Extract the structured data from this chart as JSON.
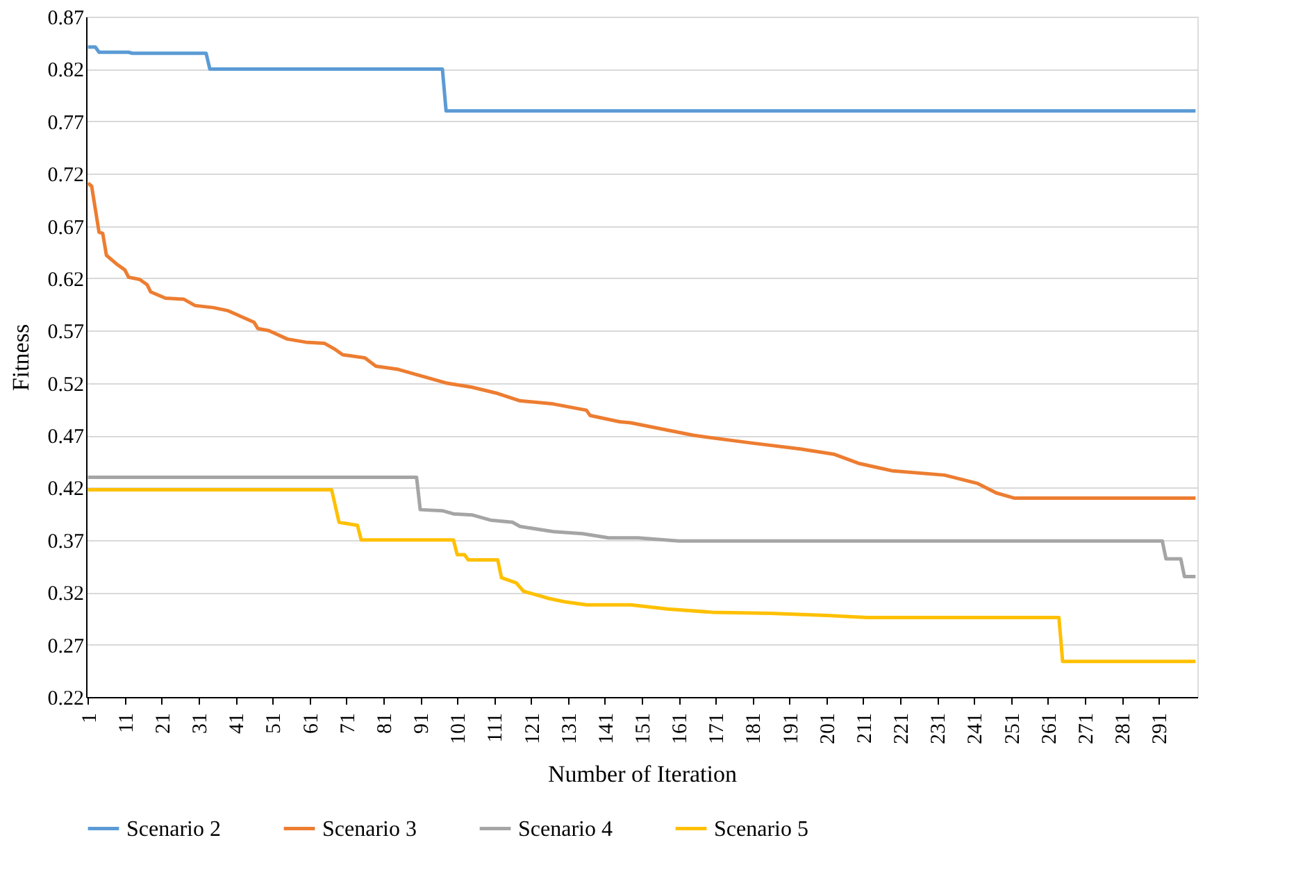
{
  "chart_data": {
    "type": "line",
    "xlabel": "Number of Iteration",
    "ylabel": "Fitness",
    "xlim": [
      0.5,
      301.5
    ],
    "xticks": [
      1,
      11,
      21,
      31,
      41,
      51,
      61,
      71,
      81,
      91,
      101,
      111,
      121,
      131,
      141,
      151,
      161,
      171,
      181,
      191,
      201,
      211,
      221,
      231,
      241,
      251,
      261,
      271,
      281,
      291
    ],
    "ylim": [
      0.22,
      0.87
    ],
    "yticks": [
      0.22,
      0.27,
      0.32,
      0.37,
      0.42,
      0.47,
      0.52,
      0.57,
      0.62,
      0.67,
      0.72,
      0.77,
      0.82,
      0.87
    ],
    "grid": "y",
    "legend": "bottom",
    "marker": "none",
    "line_style": "solid",
    "series": [
      {
        "name": "Scenario 2",
        "color": "#5b9bd5",
        "x": [
          1,
          3,
          4,
          12,
          13,
          33,
          34,
          97,
          98,
          301
        ],
        "values": [
          0.841,
          0.841,
          0.836,
          0.836,
          0.835,
          0.835,
          0.82,
          0.82,
          0.78,
          0.78
        ]
      },
      {
        "name": "Scenario 3",
        "color": "#ed7d31",
        "x": [
          1,
          2,
          3,
          4,
          5,
          6,
          9,
          11,
          12,
          15,
          17,
          18,
          22,
          27,
          30,
          35,
          39,
          46,
          47,
          50,
          55,
          60,
          65,
          68,
          70,
          76,
          79,
          85,
          90,
          98,
          105,
          112,
          118,
          127,
          136,
          137,
          145,
          148,
          165,
          180,
          194,
          203,
          210,
          219,
          233,
          242,
          247,
          252,
          301
        ],
        "values": [
          0.711,
          0.708,
          0.686,
          0.664,
          0.663,
          0.642,
          0.633,
          0.628,
          0.621,
          0.619,
          0.614,
          0.607,
          0.601,
          0.6,
          0.594,
          0.592,
          0.589,
          0.578,
          0.572,
          0.57,
          0.562,
          0.559,
          0.558,
          0.552,
          0.547,
          0.544,
          0.536,
          0.533,
          0.528,
          0.52,
          0.516,
          0.51,
          0.503,
          0.5,
          0.494,
          0.489,
          0.483,
          0.482,
          0.47,
          0.463,
          0.457,
          0.452,
          0.443,
          0.436,
          0.432,
          0.424,
          0.415,
          0.41,
          0.41
        ]
      },
      {
        "name": "Scenario 4",
        "color": "#a5a5a5",
        "x": [
          1,
          90,
          91,
          97,
          100,
          105,
          110,
          116,
          118,
          127,
          135,
          142,
          150,
          161,
          292,
          293,
          297,
          298,
          301
        ],
        "values": [
          0.43,
          0.43,
          0.399,
          0.398,
          0.395,
          0.394,
          0.389,
          0.387,
          0.383,
          0.378,
          0.376,
          0.372,
          0.372,
          0.369,
          0.369,
          0.352,
          0.352,
          0.335,
          0.335
        ]
      },
      {
        "name": "Scenario 5",
        "color": "#ffc000",
        "x": [
          1,
          67,
          69,
          74,
          75,
          100,
          101,
          103,
          104,
          112,
          113,
          117,
          119,
          126,
          130,
          136,
          148,
          158,
          170,
          186,
          201,
          212,
          264,
          265,
          301
        ],
        "values": [
          0.418,
          0.418,
          0.387,
          0.384,
          0.37,
          0.37,
          0.356,
          0.356,
          0.351,
          0.351,
          0.334,
          0.329,
          0.321,
          0.314,
          0.311,
          0.308,
          0.308,
          0.304,
          0.301,
          0.3,
          0.298,
          0.296,
          0.296,
          0.254,
          0.254
        ]
      }
    ]
  }
}
